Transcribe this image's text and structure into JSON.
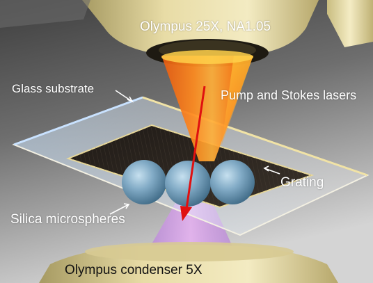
{
  "labels": {
    "objective": "Olympus 25X, NA1.05",
    "substrate": "Glass substrate",
    "lasers": "Pump and Stokes lasers",
    "grating": "Grating",
    "microspheres": "Silica microspheres",
    "condenser": "Olympus condenser 5X"
  },
  "colors": {
    "background_top": "#4a4a4a",
    "background_bottom": "#cfcfcf",
    "lens_gold": "#d9c98a",
    "beam_orange": "#ff7a1a",
    "beam_violet": "#d08ce8",
    "grating_dark": "#2b2520",
    "sphere_blue": "#7fa9c4",
    "arrow_red": "#e01010"
  }
}
